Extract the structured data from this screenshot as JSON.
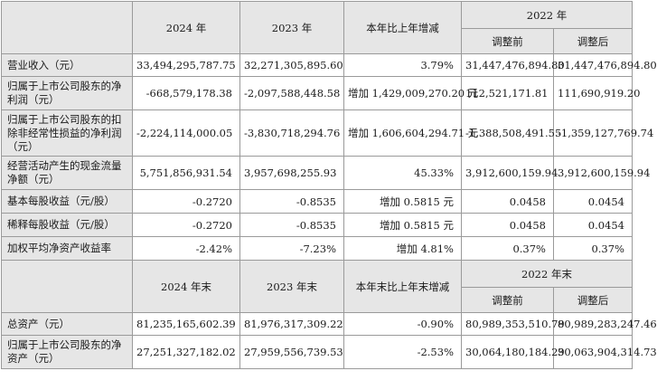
{
  "header1": {
    "col_2024": "2024 年",
    "col_2023": "2023 年",
    "col_change": "本年比上年增减",
    "col_2022": "2022 年",
    "col_before": "调整前",
    "col_after": "调整后"
  },
  "rows1": [
    {
      "label": "营业收入（元）",
      "v2024": "33,494,295,787.75",
      "v2023": "32,271,305,895.60",
      "change": "3.79%",
      "before": "31,447,476,894.80",
      "after": "31,447,476,894.80"
    },
    {
      "label": "归属于上市公司股东的净利润（元）",
      "v2024": "-668,579,178.38",
      "v2023": "-2,097,588,448.58",
      "change": "增加 1,429,009,270.20 元",
      "before": "112,521,171.81",
      "after": "111,690,919.20"
    },
    {
      "label": "归属于上市公司股东的扣除非经常性损益的净利润（元）",
      "v2024": "-2,224,114,000.05",
      "v2023": "-3,830,718,294.76",
      "change": "增加 1,606,604,294.71 元",
      "before": "-1,388,508,491.55",
      "after": "-1,359,127,769.74"
    },
    {
      "label": "经营活动产生的现金流量净额（元）",
      "v2024": "5,751,856,931.54",
      "v2023": "3,957,698,255.93",
      "change": "45.33%",
      "before": "3,912,600,159.94",
      "after": "3,912,600,159.94"
    },
    {
      "label": "基本每股收益（元/股）",
      "v2024": "-0.2720",
      "v2023": "-0.8535",
      "change": "增加 0.5815 元",
      "before": "0.0458",
      "after": "0.0454"
    },
    {
      "label": "稀释每股收益（元/股）",
      "v2024": "-0.2720",
      "v2023": "-0.8535",
      "change": "增加 0.5815 元",
      "before": "0.0458",
      "after": "0.0454"
    },
    {
      "label": "加权平均净资产收益率",
      "v2024": "-2.42%",
      "v2023": "-7.23%",
      "change": "增加 4.81%",
      "before": "0.37%",
      "after": "0.37%"
    }
  ],
  "header2": {
    "col_2024": "2024 年末",
    "col_2023": "2023 年末",
    "col_change": "本年末比上年末增减",
    "col_2022": "2022 年末",
    "col_before": "调整前",
    "col_after": "调整后"
  },
  "rows2": [
    {
      "label": "总资产（元）",
      "v2024": "81,235,165,602.39",
      "v2023": "81,976,317,309.22",
      "change": "-0.90%",
      "before": "80,989,353,510.79",
      "after": "80,989,283,247.46"
    },
    {
      "label": "归属于上市公司股东的净资产（元）",
      "v2024": "27,251,327,182.02",
      "v2023": "27,959,556,739.53",
      "change": "-2.53%",
      "before": "30,064,180,184.29",
      "after": "30,063,904,314.73"
    }
  ]
}
